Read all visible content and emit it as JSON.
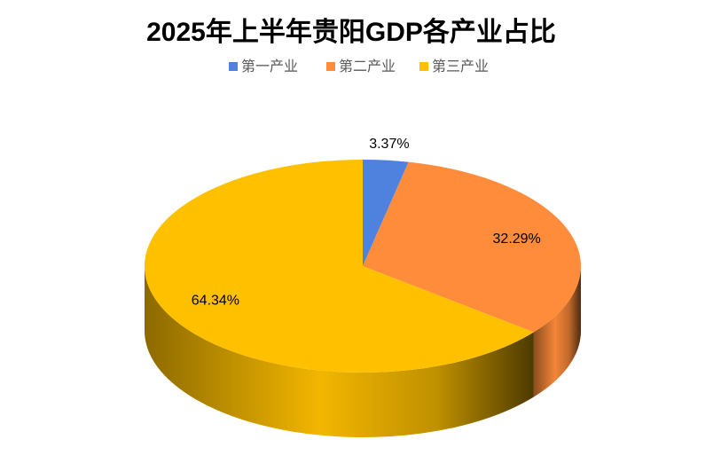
{
  "chart_data": {
    "type": "pie3d",
    "title": "2025年上半年贵阳GDP各产业占比",
    "categories": [
      "第一产业",
      "第二产业",
      "第三产业"
    ],
    "values": [
      3.37,
      32.29,
      64.34
    ],
    "value_labels": [
      "3.37%",
      "32.29%",
      "64.34%"
    ],
    "colors": [
      "#4f81df",
      "#ff8c3a",
      "#ffc000"
    ],
    "legend": "top"
  }
}
